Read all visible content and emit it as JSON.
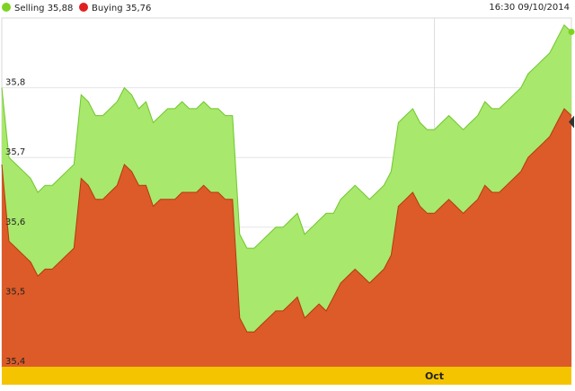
{
  "timestamp": "16:30 09/10/2014",
  "colors": {
    "selling": "#a8e86c",
    "selling_line": "#6fc72c",
    "selling_dot": "#7ed321",
    "buying": "#dd5b28",
    "buying_line": "#b23a10",
    "buying_dot": "#e02020",
    "axis_band": "#f5c400"
  },
  "chart_data": {
    "type": "area",
    "title": "",
    "xlabel": "",
    "ylabel": "",
    "ylim": [
      35.4,
      35.9
    ],
    "yticks": [
      "35,8",
      "35,7",
      "35,6",
      "35,5",
      "35,4"
    ],
    "ytick_values": [
      35.8,
      35.7,
      35.6,
      35.5,
      35.4
    ],
    "x_tick_labels": [
      "Oct"
    ],
    "x_tick_index": 60,
    "grid": true,
    "legend": "top-left",
    "series": [
      {
        "name": "Selling 35,88",
        "values": [
          35.8,
          35.7,
          35.69,
          35.68,
          35.67,
          35.65,
          35.66,
          35.66,
          35.67,
          35.68,
          35.69,
          35.79,
          35.78,
          35.76,
          35.76,
          35.77,
          35.78,
          35.8,
          35.79,
          35.77,
          35.78,
          35.75,
          35.76,
          35.77,
          35.77,
          35.78,
          35.77,
          35.77,
          35.78,
          35.77,
          35.77,
          35.76,
          35.76,
          35.59,
          35.57,
          35.57,
          35.58,
          35.59,
          35.6,
          35.6,
          35.61,
          35.62,
          35.59,
          35.6,
          35.61,
          35.62,
          35.62,
          35.64,
          35.65,
          35.66,
          35.65,
          35.64,
          35.65,
          35.66,
          35.68,
          35.75,
          35.76,
          35.77,
          35.75,
          35.74,
          35.74,
          35.75,
          35.76,
          35.75,
          35.74,
          35.75,
          35.76,
          35.78,
          35.77,
          35.77,
          35.78,
          35.79,
          35.8,
          35.82,
          35.83,
          35.84,
          35.85,
          35.87,
          35.89,
          35.88
        ]
      },
      {
        "name": "Buying 35,76",
        "values": [
          35.69,
          35.58,
          35.57,
          35.56,
          35.55,
          35.53,
          35.54,
          35.54,
          35.55,
          35.56,
          35.57,
          35.67,
          35.66,
          35.64,
          35.64,
          35.65,
          35.66,
          35.69,
          35.68,
          35.66,
          35.66,
          35.63,
          35.64,
          35.64,
          35.64,
          35.65,
          35.65,
          35.65,
          35.66,
          35.65,
          35.65,
          35.64,
          35.64,
          35.47,
          35.45,
          35.45,
          35.46,
          35.47,
          35.48,
          35.48,
          35.49,
          35.5,
          35.47,
          35.48,
          35.49,
          35.48,
          35.5,
          35.52,
          35.53,
          35.54,
          35.53,
          35.52,
          35.53,
          35.54,
          35.56,
          35.63,
          35.64,
          35.65,
          35.63,
          35.62,
          35.62,
          35.63,
          35.64,
          35.63,
          35.62,
          35.63,
          35.64,
          35.66,
          35.65,
          35.65,
          35.66,
          35.67,
          35.68,
          35.7,
          35.71,
          35.72,
          35.73,
          35.75,
          35.77,
          35.76
        ]
      }
    ]
  }
}
